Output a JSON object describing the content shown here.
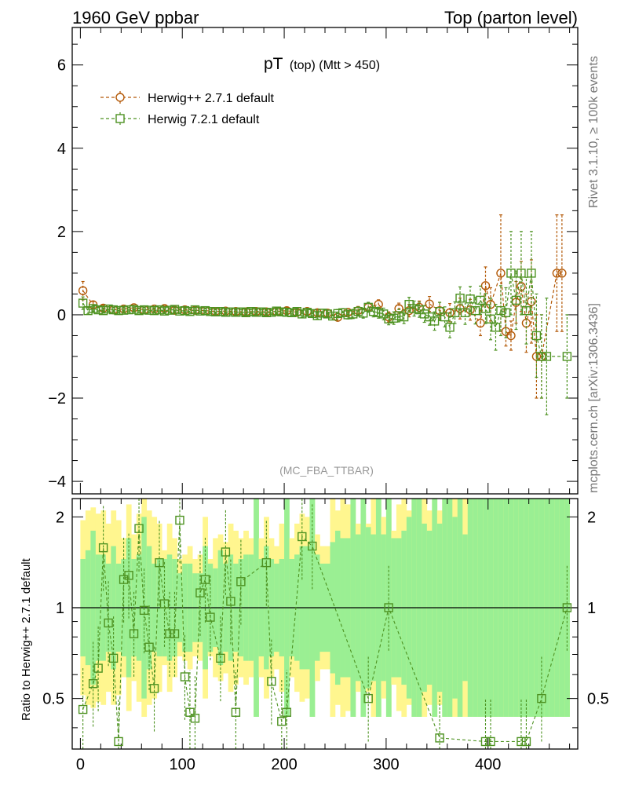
{
  "header": {
    "left_title": "1960 GeV ppbar",
    "right_title": "Top (parton level)"
  },
  "side_labels": {
    "rivet": "Rivet 3.1.10, ≥ 100k events",
    "mcplots": "mcplots.cern.ch [arXiv:1306.3436]"
  },
  "chart_data": [
    {
      "type": "scatter",
      "title_main": "pT",
      "title_sub": "(top) (Mtt > 450)",
      "watermark": "(MC_FBA_TTBAR)",
      "xlim": [
        -8,
        488
      ],
      "ylim": [
        -4.3,
        6.9
      ],
      "yticks": [
        -4,
        -2,
        0,
        2,
        4,
        6
      ],
      "ytick_labels": [
        "−4",
        "−2",
        "0",
        "2",
        "4",
        "6"
      ],
      "legend_position": "top-left",
      "series": [
        {
          "name": "Herwig++ 2.7.1 default",
          "color": "#b35806",
          "marker": "circle",
          "x": [
            2.5,
            12.5,
            22.5,
            32.5,
            42.5,
            52.5,
            62.5,
            72.5,
            82.5,
            92.5,
            102.5,
            112.5,
            122.5,
            132.5,
            142.5,
            152.5,
            162.5,
            172.5,
            182.5,
            192.5,
            202.5,
            212.5,
            222.5,
            232.5,
            242.5,
            252.5,
            262.5,
            272.5,
            282.5,
            292.5,
            302.5,
            312.5,
            322.5,
            332.5,
            342.5,
            352.5,
            362.5,
            372.5,
            382.5,
            392.5,
            397.5,
            402.5,
            412.5,
            417.5,
            422.5,
            427.5,
            432.5,
            437.5,
            442.5,
            447.5,
            452.5,
            467.5,
            472.5
          ],
          "y": [
            0.58,
            0.24,
            0.16,
            0.12,
            0.14,
            0.17,
            0.12,
            0.14,
            0.15,
            0.11,
            0.12,
            0.11,
            0.1,
            0.08,
            0.09,
            0.08,
            0.07,
            0.08,
            0.07,
            0.08,
            0.1,
            0.06,
            0.08,
            0.05,
            0.04,
            -0.06,
            0.06,
            0.1,
            0.18,
            0.25,
            -0.05,
            0.15,
            0.1,
            0.18,
            0.26,
            0.1,
            0.05,
            0.15,
            0.12,
            -0.2,
            0.7,
            0.25,
            1.0,
            -0.4,
            -0.5,
            0.3,
            0.68,
            -0.2,
            0.32,
            -1.0,
            -1.0,
            1.0,
            1.0
          ],
          "yerr": [
            0.22,
            0.08,
            0.07,
            0.06,
            0.06,
            0.06,
            0.06,
            0.06,
            0.06,
            0.06,
            0.06,
            0.06,
            0.06,
            0.06,
            0.06,
            0.06,
            0.06,
            0.06,
            0.06,
            0.07,
            0.07,
            0.07,
            0.08,
            0.08,
            0.08,
            0.09,
            0.09,
            0.1,
            0.1,
            0.11,
            0.12,
            0.13,
            0.15,
            0.15,
            0.18,
            0.2,
            0.22,
            0.25,
            0.25,
            0.3,
            0.45,
            0.4,
            1.4,
            0.35,
            0.35,
            0.5,
            0.6,
            0.7,
            1.0,
            1.0,
            1.0,
            1.4,
            1.4
          ]
        },
        {
          "name": "Herwig 7.2.1 default",
          "color": "#4d9221",
          "marker": "square",
          "x": [
            2.5,
            7.5,
            12.5,
            17.5,
            22.5,
            27.5,
            32.5,
            37.5,
            42.5,
            47.5,
            52.5,
            57.5,
            62.5,
            67.5,
            72.5,
            77.5,
            82.5,
            87.5,
            92.5,
            97.5,
            102.5,
            107.5,
            112.5,
            117.5,
            122.5,
            127.5,
            132.5,
            137.5,
            142.5,
            147.5,
            152.5,
            157.5,
            162.5,
            167.5,
            172.5,
            177.5,
            182.5,
            187.5,
            192.5,
            197.5,
            202.5,
            207.5,
            212.5,
            217.5,
            222.5,
            227.5,
            232.5,
            237.5,
            242.5,
            247.5,
            252.5,
            257.5,
            262.5,
            267.5,
            272.5,
            277.5,
            282.5,
            287.5,
            292.5,
            297.5,
            302.5,
            307.5,
            312.5,
            317.5,
            322.5,
            327.5,
            332.5,
            337.5,
            342.5,
            347.5,
            352.5,
            357.5,
            362.5,
            367.5,
            372.5,
            377.5,
            382.5,
            387.5,
            392.5,
            397.5,
            402.5,
            407.5,
            412.5,
            417.5,
            422.5,
            427.5,
            432.5,
            437.5,
            442.5,
            447.5,
            452.5,
            457.5,
            477.5
          ],
          "y": [
            0.28,
            0.1,
            0.15,
            0.12,
            0.1,
            0.14,
            0.12,
            0.1,
            0.11,
            0.12,
            0.13,
            0.1,
            0.12,
            0.11,
            0.1,
            0.12,
            0.09,
            0.11,
            0.13,
            0.09,
            0.1,
            0.08,
            0.12,
            0.09,
            0.1,
            0.08,
            0.07,
            0.08,
            0.06,
            0.07,
            0.06,
            0.07,
            0.05,
            0.08,
            0.06,
            0.07,
            0.05,
            0.06,
            0.09,
            0.07,
            0.06,
            0.05,
            0.08,
            0.02,
            0.06,
            0.03,
            -0.02,
            0.04,
            0.02,
            -0.03,
            0.03,
            0.05,
            0.0,
            0.02,
            0.08,
            0.04,
            0.18,
            0.08,
            0.05,
            0.02,
            -0.1,
            -0.08,
            -0.02,
            -0.05,
            0.25,
            0.15,
            0.12,
            0.02,
            -0.05,
            -0.15,
            0.08,
            -0.05,
            -0.3,
            0.05,
            0.4,
            0.05,
            0.38,
            0.1,
            0.35,
            0.15,
            -0.1,
            -0.3,
            0.1,
            0.05,
            1.0,
            0.35,
            1.0,
            0.1,
            1.0,
            -0.5,
            -1.0,
            -1.0,
            -1.0
          ],
          "yerr": [
            0.15,
            0.08,
            0.07,
            0.06,
            0.06,
            0.06,
            0.06,
            0.06,
            0.06,
            0.06,
            0.06,
            0.06,
            0.06,
            0.06,
            0.06,
            0.06,
            0.06,
            0.06,
            0.06,
            0.06,
            0.06,
            0.06,
            0.06,
            0.06,
            0.06,
            0.06,
            0.06,
            0.06,
            0.06,
            0.06,
            0.06,
            0.06,
            0.06,
            0.06,
            0.06,
            0.06,
            0.06,
            0.06,
            0.07,
            0.07,
            0.07,
            0.07,
            0.07,
            0.08,
            0.08,
            0.08,
            0.08,
            0.09,
            0.09,
            0.09,
            0.1,
            0.1,
            0.1,
            0.11,
            0.11,
            0.12,
            0.12,
            0.13,
            0.13,
            0.14,
            0.14,
            0.15,
            0.15,
            0.16,
            0.17,
            0.18,
            0.18,
            0.2,
            0.2,
            0.22,
            0.22,
            0.24,
            0.25,
            0.26,
            0.27,
            0.28,
            0.3,
            0.32,
            0.34,
            0.36,
            0.5,
            0.55,
            0.6,
            0.6,
            1.0,
            0.7,
            1.0,
            0.8,
            1.0,
            1.0,
            1.0,
            1.4,
            1.0
          ]
        }
      ]
    },
    {
      "type": "scatter",
      "ylabel": "Ratio to Herwig++ 2.7.1 default",
      "xlim": [
        -8,
        488
      ],
      "ylim": [
        0.34,
        2.3
      ],
      "yticks": [
        0.5,
        1,
        2
      ],
      "ytick_labels": [
        "0.5",
        "1",
        "2"
      ],
      "xticks": [
        0,
        100,
        200,
        300,
        400
      ],
      "xtick_labels": [
        "0",
        "100",
        "200",
        "300",
        "400"
      ],
      "reference_line": 1,
      "yellow_band_max": [
        1.95,
        2.1,
        2.15,
        2.05,
        2.1,
        1.9,
        2.1,
        1.95,
        1.7,
        2.2,
        1.75,
        2.05,
        2.3,
        2.1,
        2.0,
        1.9,
        1.55,
        1.9,
        1.7,
        1.45,
        1.5,
        1.6,
        1.45,
        1.5,
        2.0,
        1.45,
        1.7,
        1.75,
        1.65,
        1.9,
        1.8,
        1.7,
        1.8,
        1.7,
        2.3,
        1.7,
        2.0,
        1.7,
        1.6,
        1.9,
        1.6,
        1.7,
        1.9,
        2.05,
        2.0,
        2.3,
        1.75,
        1.6,
        1.6,
        2.3,
        2.1,
        2.3,
        2.2,
        2.3,
        1.9,
        2.05,
        1.9,
        2.3,
        2.3,
        2.0,
        2.3,
        1.8,
        2.2,
        2.3,
        2.1,
        2.3,
        2.3,
        2.3,
        2.1,
        2.3,
        2.1,
        2.3,
        2.3,
        2.3,
        2.3,
        2.3,
        2.3,
        2.3,
        2.3,
        2.3,
        2.3,
        2.3,
        2.3,
        2.3,
        2.3,
        2.3,
        2.3,
        2.3,
        2.3,
        2.3,
        2.3,
        2.3,
        2.3,
        2.3,
        2.3,
        2.3
      ],
      "green_band_max": [
        1.45,
        1.55,
        1.8,
        1.5,
        1.5,
        1.4,
        1.6,
        1.4,
        1.45,
        1.7,
        1.45,
        1.5,
        2.0,
        1.6,
        1.4,
        1.45,
        1.45,
        1.5,
        1.45,
        1.3,
        1.4,
        1.4,
        1.3,
        1.3,
        1.6,
        1.4,
        1.35,
        1.55,
        1.4,
        1.5,
        1.4,
        1.45,
        1.5,
        1.5,
        2.3,
        1.45,
        1.6,
        1.45,
        1.4,
        1.45,
        2.3,
        1.45,
        1.5,
        1.6,
        1.6,
        2.3,
        1.5,
        1.4,
        1.4,
        1.65,
        1.8,
        1.7,
        1.7,
        2.3,
        1.75,
        2.3,
        1.85,
        1.75,
        2.3,
        1.75,
        2.3,
        1.7,
        1.7,
        1.8,
        2.0,
        2.3,
        2.3,
        1.9,
        1.8,
        2.3,
        1.9,
        2.3,
        2.3,
        2.0,
        2.3,
        1.75,
        2.3,
        2.3,
        2.3,
        2.3,
        2.3,
        2.3,
        2.3,
        2.3,
        2.3,
        2.3,
        2.3,
        2.3,
        2.3,
        2.3,
        2.3,
        2.3,
        2.3,
        2.3,
        2.3,
        2.3
      ],
      "series": [
        {
          "name": "Herwig 7.2.1 default",
          "color": "#4d9221",
          "marker": "square",
          "x": [
            2.5,
            12.5,
            17.5,
            22.5,
            27.5,
            32.5,
            37.5,
            42.5,
            47.5,
            52.5,
            57.5,
            62.5,
            67.5,
            72.5,
            77.5,
            82.5,
            87.5,
            92.5,
            97.5,
            102.5,
            107.5,
            112.5,
            117.5,
            122.5,
            127.5,
            137.5,
            142.5,
            147.5,
            152.5,
            157.5,
            182.5,
            187.5,
            197.5,
            202.5,
            217.5,
            227.5,
            282.5,
            302.5,
            352.5,
            397.5,
            402.5,
            432.5,
            437.5,
            452.5,
            477.5
          ],
          "y": [
            0.46,
            0.56,
            0.63,
            1.58,
            0.89,
            0.68,
            0.36,
            1.24,
            1.28,
            0.82,
            1.83,
            0.98,
            0.74,
            0.54,
            1.41,
            1.03,
            0.82,
            0.82,
            1.95,
            0.59,
            0.45,
            0.43,
            1.12,
            1.24,
            0.93,
            0.68,
            1.53,
            1.05,
            0.45,
            1.22,
            1.41,
            0.57,
            0.42,
            0.45,
            1.72,
            1.6,
            0.5,
            1.0,
            0.37,
            0.36,
            0.36,
            0.36,
            0.36,
            0.5,
            1.0
          ]
        }
      ]
    }
  ]
}
